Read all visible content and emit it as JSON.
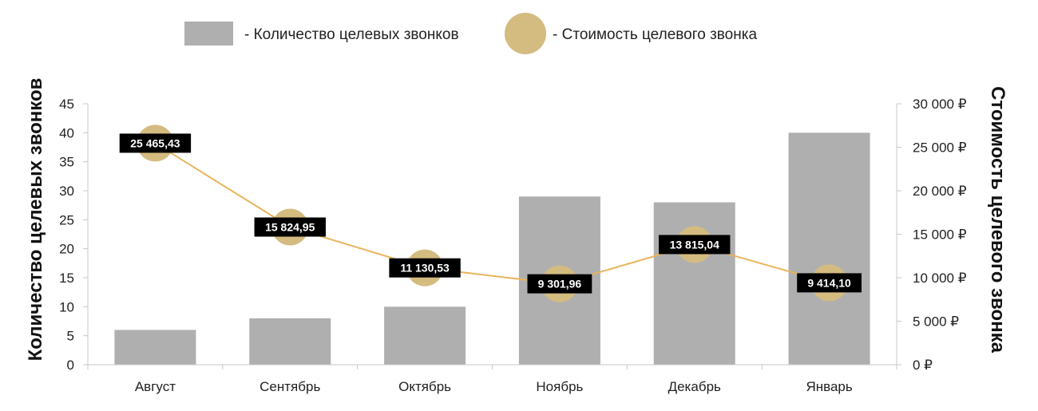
{
  "chart_data": {
    "type": "bar",
    "categories": [
      "Август",
      "Сентябрь",
      "Октябрь",
      "Ноябрь",
      "Декабрь",
      "Январь"
    ],
    "series": [
      {
        "name": "- Количество целевых звонков",
        "type": "bar",
        "axis": "left",
        "color": "#b0afb0",
        "values": [
          6,
          8,
          10,
          29,
          28,
          40
        ]
      },
      {
        "name": "- Стоимость целевого звонка",
        "type": "line",
        "axis": "right",
        "color": "#d4bb80",
        "line_color": "#e8b45a",
        "values": [
          25465.43,
          15824.95,
          11130.53,
          9301.96,
          13815.04,
          9414.1
        ],
        "labels": [
          "25 465,43",
          "15 824,95",
          "11 130,53",
          "9 301,96",
          "13 815,04",
          "9 414,10"
        ]
      }
    ],
    "ylabel": "Количество целевых звонков",
    "y2label": "Стоимость целевого звонка",
    "ylim": [
      0,
      45
    ],
    "y2lim": [
      0,
      30000
    ],
    "yticks": [
      "0",
      "5",
      "10",
      "15",
      "20",
      "25",
      "30",
      "35",
      "40",
      "45"
    ],
    "y2ticks": [
      "0 ₽",
      "5 000 ₽",
      "10 000 ₽",
      "15 000 ₽",
      "20 000 ₽",
      "25 000 ₽",
      "30 000 ₽"
    ],
    "legend_position": "top",
    "grid": false
  }
}
